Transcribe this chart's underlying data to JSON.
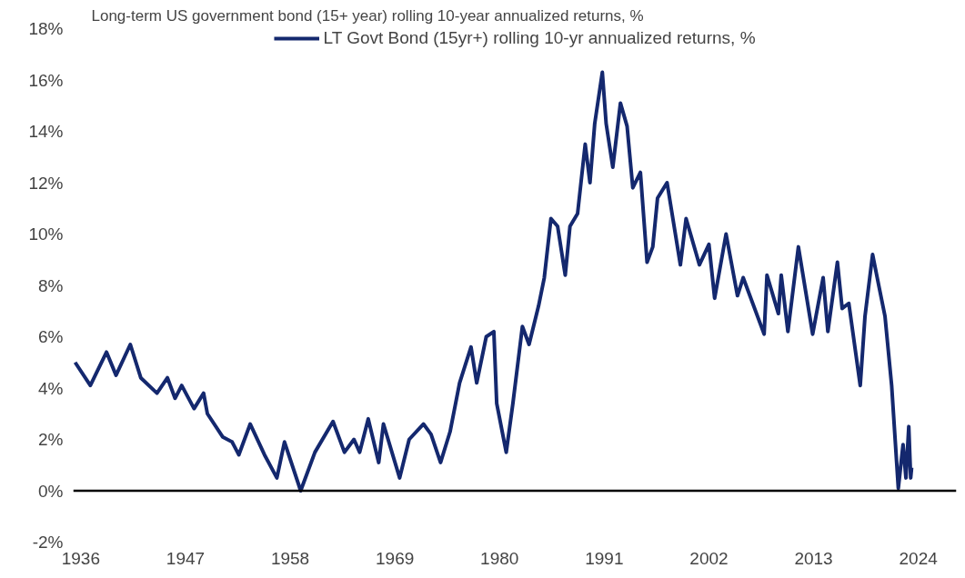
{
  "chart_data": {
    "type": "line",
    "title": "Long-term US government bond (15+ year) rolling 10-year annualized returns, %",
    "xlim": [
      1935.2,
      2028
    ],
    "xticks": [
      1936,
      1947,
      1958,
      1969,
      1980,
      1991,
      2002,
      2013,
      2024
    ],
    "ylim": [
      -2,
      18
    ],
    "yticks": [
      {
        "value": -2,
        "label": "-2%"
      },
      {
        "value": 0,
        "label": "0%"
      },
      {
        "value": 2,
        "label": "2%"
      },
      {
        "value": 4,
        "label": "4%"
      },
      {
        "value": 6,
        "label": "6%"
      },
      {
        "value": 8,
        "label": "8%"
      },
      {
        "value": 10,
        "label": "10%"
      },
      {
        "value": 12,
        "label": "12%"
      },
      {
        "value": 14,
        "label": "14%"
      },
      {
        "value": 16,
        "label": "16%"
      },
      {
        "value": 18,
        "label": "18%"
      }
    ],
    "grid": false,
    "legend": "top",
    "line_style": "solid",
    "marker": "none",
    "ref_lines": [
      {
        "axis": "y",
        "value": 0,
        "color": "#000000"
      }
    ],
    "series": [
      {
        "name": "LT Govt Bond (15yr+) rolling 10-yr annualized returns, %",
        "color": "#14286e",
        "x": [
          1935.4,
          1937.0,
          1938.7,
          1939.7,
          1941.2,
          1942.3,
          1944.0,
          1945.1,
          1945.9,
          1946.6,
          1947.9,
          1948.9,
          1949.3,
          1950.9,
          1951.9,
          1952.6,
          1953.8,
          1955.3,
          1956.6,
          1957.4,
          1959.1,
          1960.6,
          1962.5,
          1963.7,
          1964.7,
          1965.3,
          1966.2,
          1967.3,
          1967.8,
          1969.5,
          1970.5,
          1972.0,
          1972.8,
          1973.8,
          1974.8,
          1975.8,
          1977.0,
          1977.6,
          1978.6,
          1979.4,
          1979.7,
          1980.7,
          1981.4,
          1982.4,
          1983.1,
          1984.1,
          1984.7,
          1985.4,
          1986.1,
          1986.9,
          1987.4,
          1988.2,
          1989.0,
          1989.5,
          1990.0,
          1990.8,
          1991.2,
          1991.9,
          1992.7,
          1993.4,
          1994.0,
          1994.8,
          1995.5,
          1996.1,
          1996.6,
          1997.6,
          1999.0,
          1999.6,
          2001.0,
          2002.0,
          2002.6,
          2003.8,
          2005.0,
          2005.6,
          2007.8,
          2008.1,
          2009.3,
          2009.6,
          2010.3,
          2011.4,
          2012.9,
          2014.0,
          2014.5,
          2015.5,
          2016.0,
          2016.7,
          2017.9,
          2018.4,
          2019.2,
          2019.9,
          2020.5,
          2021.2,
          2021.9,
          2022.4,
          2022.7,
          2023.0,
          2023.2,
          2023.3
        ],
        "values": [
          5.0,
          4.1,
          5.4,
          4.5,
          5.7,
          4.4,
          3.8,
          4.4,
          3.6,
          4.1,
          3.2,
          3.8,
          3.0,
          2.1,
          1.9,
          1.4,
          2.6,
          1.4,
          0.5,
          1.9,
          0.0,
          1.5,
          2.7,
          1.5,
          2.0,
          1.5,
          2.8,
          1.1,
          2.6,
          0.5,
          2.0,
          2.6,
          2.2,
          1.1,
          2.3,
          4.2,
          5.6,
          4.2,
          6.0,
          6.2,
          3.4,
          1.5,
          3.4,
          6.4,
          5.7,
          7.2,
          8.3,
          10.6,
          10.3,
          8.4,
          10.3,
          10.8,
          13.5,
          12.0,
          14.3,
          16.3,
          14.3,
          12.6,
          15.1,
          14.2,
          11.8,
          12.4,
          8.9,
          9.5,
          11.4,
          12.0,
          8.8,
          10.6,
          8.8,
          9.6,
          7.5,
          10.0,
          7.6,
          8.3,
          6.1,
          8.4,
          6.9,
          8.4,
          6.2,
          9.5,
          6.1,
          8.3,
          6.2,
          8.9,
          7.1,
          7.3,
          4.1,
          6.8,
          9.2,
          7.9,
          6.8,
          4.1,
          0.1,
          1.8,
          0.5,
          2.5,
          0.5,
          0.9
        ]
      }
    ]
  }
}
